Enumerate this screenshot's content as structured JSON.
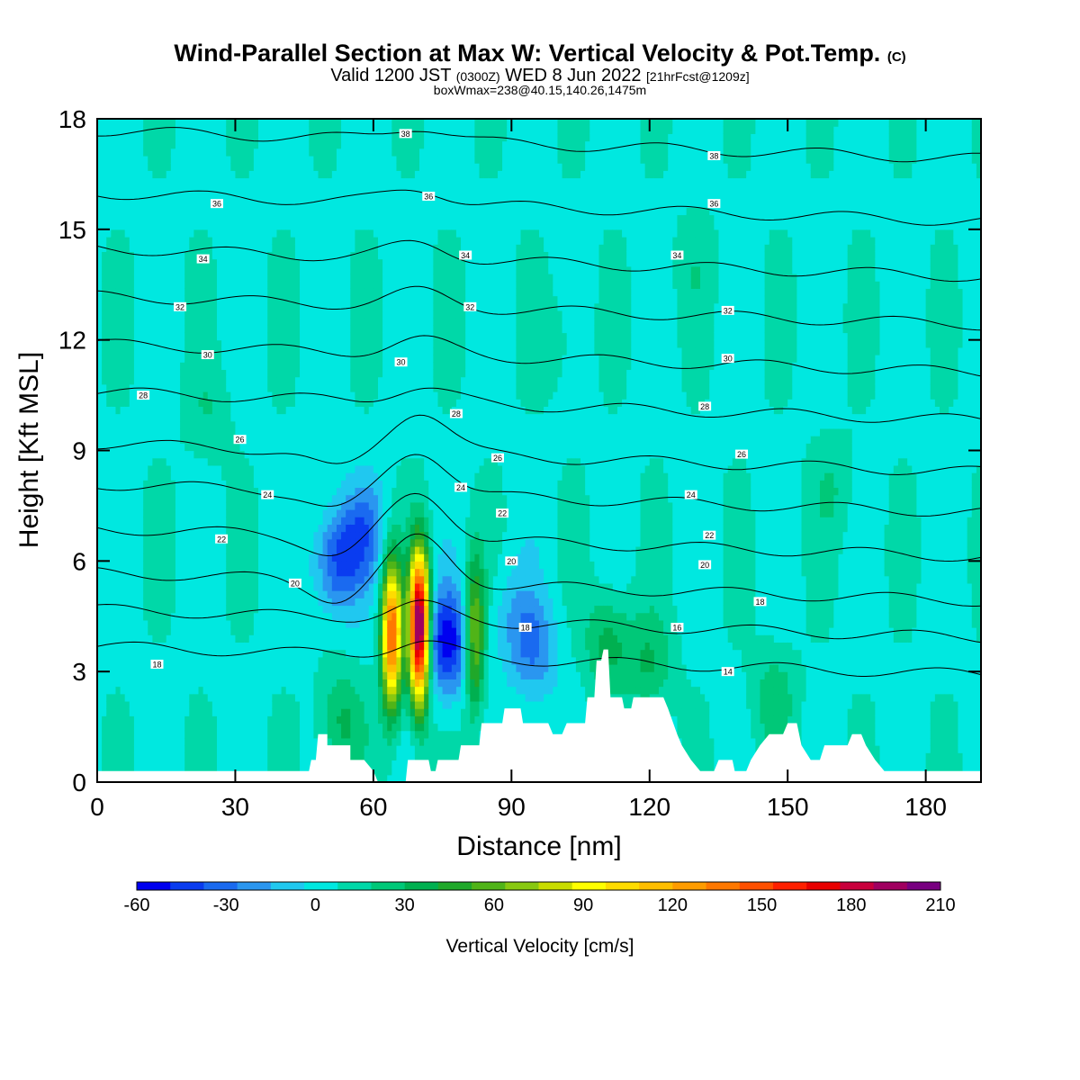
{
  "header": {
    "title": "Wind-Parallel Section at Max W: Vertical Velocity & Pot.Temp.",
    "title_suffix": "(C)",
    "valid_prefix": "Valid 1200 JST",
    "valid_zulu": "(0300Z)",
    "valid_date": "WED 8 Jun 2022",
    "forecast": "[21hrFcst@1209z]",
    "box_info": "boxWmax=238@40.15,140.26,1475m"
  },
  "chart_data": {
    "type": "heatmap",
    "xlabel": "Distance [nm]",
    "ylabel": "Height [Kft MSL]",
    "xlim": [
      0,
      192
    ],
    "ylim": [
      0,
      18
    ],
    "x_ticks": [
      0,
      30,
      60,
      90,
      120,
      150,
      180
    ],
    "y_ticks": [
      0,
      3,
      6,
      9,
      12,
      15,
      18
    ],
    "colorbar": {
      "label": "Vertical Velocity [cm/s]",
      "range": [
        -60,
        210
      ],
      "tick_labels": [
        "-60",
        "-30",
        "0",
        "30",
        "60",
        "90",
        "120",
        "150",
        "180",
        "210"
      ],
      "colors": [
        "#0000f0",
        "#0a3cf0",
        "#1a6af0",
        "#2a96f0",
        "#20c8f0",
        "#00e8e0",
        "#00d8a8",
        "#00c878",
        "#00b050",
        "#20a82a",
        "#50b418",
        "#88c810",
        "#c8dc00",
        "#ffff00",
        "#ffdc00",
        "#ffbe00",
        "#ff9c00",
        "#ff7800",
        "#ff5000",
        "#ff2000",
        "#e80000",
        "#c8003c",
        "#a00060",
        "#780080"
      ]
    },
    "background_w": 5,
    "w_features": [
      {
        "x": 64,
        "z": 4.0,
        "w": 140
      },
      {
        "x": 70,
        "z": 4.2,
        "w": 210
      },
      {
        "x": 76,
        "z": 3.8,
        "w": -60
      },
      {
        "x": 82,
        "z": 4.0,
        "w": 70
      },
      {
        "x": 52,
        "z": 6.0,
        "w": -45
      },
      {
        "x": 58,
        "z": 6.8,
        "w": -30
      },
      {
        "x": 95,
        "z": 3.6,
        "w": -30
      },
      {
        "x": 90,
        "z": 4.5,
        "w": -15
      },
      {
        "x": 111,
        "z": 3.8,
        "w": 30
      },
      {
        "x": 120,
        "z": 3.2,
        "w": 25
      },
      {
        "x": 147,
        "z": 2.3,
        "w": 20
      },
      {
        "x": 53,
        "z": 1.6,
        "w": 28
      },
      {
        "x": 24,
        "z": 10,
        "w": 12
      },
      {
        "x": 100,
        "z": 12,
        "w": 10
      },
      {
        "x": 160,
        "z": 8,
        "w": 12
      },
      {
        "x": 130,
        "z": 14,
        "w": 8
      }
    ],
    "theta_contours": [
      {
        "value": 16,
        "label": "16",
        "z0": 3.3
      },
      {
        "value": 18,
        "label": "18",
        "z0": 4.3
      },
      {
        "value": 20,
        "label": "20",
        "z0": 5.3
      },
      {
        "value": 22,
        "label": "22",
        "z0": 6.5
      },
      {
        "value": 24,
        "label": "24",
        "z0": 7.7
      },
      {
        "value": 26,
        "label": "26",
        "z0": 8.8
      },
      {
        "value": 28,
        "label": "28",
        "z0": 10.2
      },
      {
        "value": 30,
        "label": "30",
        "z0": 11.5
      },
      {
        "value": 32,
        "label": "32",
        "z0": 12.8
      },
      {
        "value": 34,
        "label": "34",
        "z0": 14.1
      },
      {
        "value": 36,
        "label": "36",
        "z0": 15.6
      },
      {
        "value": 38,
        "label": "38",
        "z0": 17.3
      }
    ],
    "contour_label_positions": [
      {
        "label": "18",
        "x": 13,
        "z": 3.2
      },
      {
        "label": "20",
        "x": 43,
        "z": 5.4
      },
      {
        "label": "22",
        "x": 27,
        "z": 6.6
      },
      {
        "label": "24",
        "x": 37,
        "z": 7.8
      },
      {
        "label": "26",
        "x": 31,
        "z": 9.3
      },
      {
        "label": "28",
        "x": 10,
        "z": 10.5
      },
      {
        "label": "30",
        "x": 24,
        "z": 11.6
      },
      {
        "label": "32",
        "x": 18,
        "z": 12.9
      },
      {
        "label": "34",
        "x": 23,
        "z": 14.2
      },
      {
        "label": "36",
        "x": 26,
        "z": 15.7
      },
      {
        "label": "38",
        "x": 67,
        "z": 17.6
      },
      {
        "label": "36",
        "x": 72,
        "z": 15.9
      },
      {
        "label": "34",
        "x": 80,
        "z": 14.3
      },
      {
        "label": "32",
        "x": 81,
        "z": 12.9
      },
      {
        "label": "30",
        "x": 66,
        "z": 11.4
      },
      {
        "label": "28",
        "x": 78,
        "z": 10.0
      },
      {
        "label": "26",
        "x": 87,
        "z": 8.8
      },
      {
        "label": "24",
        "x": 79,
        "z": 8.0
      },
      {
        "label": "22",
        "x": 88,
        "z": 7.3
      },
      {
        "label": "20",
        "x": 90,
        "z": 6.0
      },
      {
        "label": "18",
        "x": 93,
        "z": 4.2
      },
      {
        "label": "38",
        "x": 134,
        "z": 17.0
      },
      {
        "label": "36",
        "x": 134,
        "z": 15.7
      },
      {
        "label": "34",
        "x": 126,
        "z": 14.3
      },
      {
        "label": "32",
        "x": 137,
        "z": 12.8
      },
      {
        "label": "30",
        "x": 137,
        "z": 11.5
      },
      {
        "label": "28",
        "x": 132,
        "z": 10.2
      },
      {
        "label": "26",
        "x": 140,
        "z": 8.9
      },
      {
        "label": "24",
        "x": 129,
        "z": 7.8
      },
      {
        "label": "22",
        "x": 133,
        "z": 6.7
      },
      {
        "label": "20",
        "x": 132,
        "z": 5.9
      },
      {
        "label": "18",
        "x": 144,
        "z": 4.9
      },
      {
        "label": "16",
        "x": 126,
        "z": 4.2
      },
      {
        "label": "14",
        "x": 137,
        "z": 3.0
      }
    ],
    "terrain": [
      [
        0,
        0.3
      ],
      [
        46,
        0.3
      ],
      [
        46.5,
        0.6
      ],
      [
        47.5,
        0.6
      ],
      [
        48,
        1.3
      ],
      [
        50,
        1.3
      ],
      [
        50,
        1.0
      ],
      [
        55,
        1.0
      ],
      [
        55,
        0.6
      ],
      [
        58,
        0.6
      ],
      [
        60,
        0.3
      ],
      [
        61,
        0
      ],
      [
        67,
        0
      ],
      [
        67.5,
        0.6
      ],
      [
        72,
        0.6
      ],
      [
        72.5,
        0.3
      ],
      [
        73.5,
        0.3
      ],
      [
        74,
        0.6
      ],
      [
        78.5,
        0.6
      ],
      [
        79,
        1.0
      ],
      [
        83,
        1.0
      ],
      [
        83.5,
        1.6
      ],
      [
        88,
        1.6
      ],
      [
        88.5,
        2.0
      ],
      [
        92,
        2.0
      ],
      [
        92.5,
        1.6
      ],
      [
        98,
        1.6
      ],
      [
        99,
        1.3
      ],
      [
        101,
        1.3
      ],
      [
        102,
        1.6
      ],
      [
        106,
        1.6
      ],
      [
        106.5,
        2.3
      ],
      [
        108,
        2.3
      ],
      [
        108.5,
        3.3
      ],
      [
        109.5,
        3.3
      ],
      [
        110,
        3.6
      ],
      [
        111,
        3.6
      ],
      [
        111.5,
        2.3
      ],
      [
        114,
        2.3
      ],
      [
        114.5,
        2.0
      ],
      [
        116,
        2.0
      ],
      [
        116.5,
        2.3
      ],
      [
        123,
        2.3
      ],
      [
        124,
        2.0
      ],
      [
        126,
        1.3
      ],
      [
        127,
        1.0
      ],
      [
        129,
        0.6
      ],
      [
        131,
        0.3
      ],
      [
        134,
        0.3
      ],
      [
        135,
        0.6
      ],
      [
        138,
        0.6
      ],
      [
        138.5,
        0.3
      ],
      [
        141,
        0.3
      ],
      [
        142,
        0.6
      ],
      [
        144,
        1.0
      ],
      [
        146,
        1.3
      ],
      [
        149,
        1.3
      ],
      [
        150,
        1.6
      ],
      [
        152,
        1.6
      ],
      [
        153,
        1.0
      ],
      [
        155,
        0.6
      ],
      [
        157,
        0.6
      ],
      [
        158,
        1.0
      ],
      [
        163,
        1.0
      ],
      [
        164,
        1.3
      ],
      [
        166,
        1.3
      ],
      [
        167,
        1.0
      ],
      [
        169,
        0.6
      ],
      [
        171,
        0.3
      ],
      [
        192,
        0.3
      ]
    ]
  }
}
